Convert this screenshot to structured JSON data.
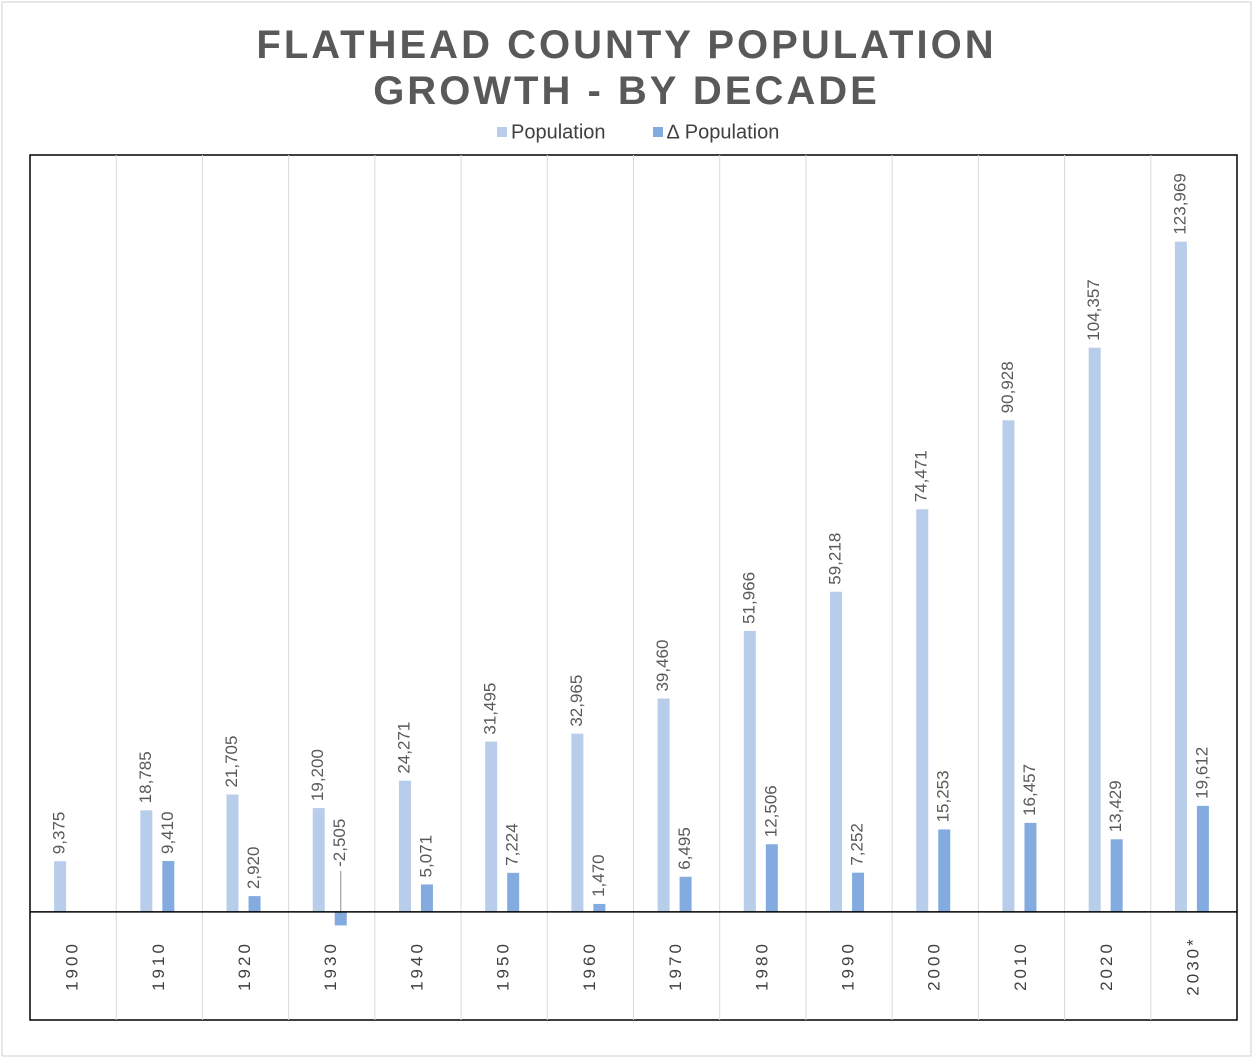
{
  "chart_data": {
    "type": "bar",
    "title": "FLATHEAD COUNTY POPULATION GROWTH - BY DECADE",
    "categories": [
      "1900",
      "1910",
      "1920",
      "1930",
      "1940",
      "1950",
      "1960",
      "1970",
      "1980",
      "1990",
      "2000",
      "2010",
      "2020",
      "2030*"
    ],
    "series": [
      {
        "name": "Population",
        "color": "#b8cde9",
        "values": [
          9375,
          18785,
          21705,
          19200,
          24271,
          31495,
          32965,
          39460,
          51966,
          59218,
          74471,
          90928,
          104357,
          123969
        ],
        "value_labels": [
          "9,375",
          "18,785",
          "21,705",
          "19,200",
          "24,271",
          "31,495",
          "32,965",
          "39,460",
          "51,966",
          "59,218",
          "74,471",
          "90,928",
          "104,357",
          "123,969"
        ]
      },
      {
        "name": "∆ Population",
        "color": "#84abdf",
        "values": [
          null,
          9410,
          2920,
          -2505,
          5071,
          7224,
          1470,
          6495,
          12506,
          7252,
          15253,
          16457,
          13429,
          19612
        ],
        "value_labels": [
          null,
          "9,410",
          "2,920",
          "-2,505",
          "5,071",
          "7,224",
          "1,470",
          "6,495",
          "12,506",
          "7,252",
          "15,253",
          "16,457",
          "13,429",
          "19,612"
        ]
      }
    ],
    "ylim": [
      -20000,
      140000
    ],
    "legend": "top"
  }
}
